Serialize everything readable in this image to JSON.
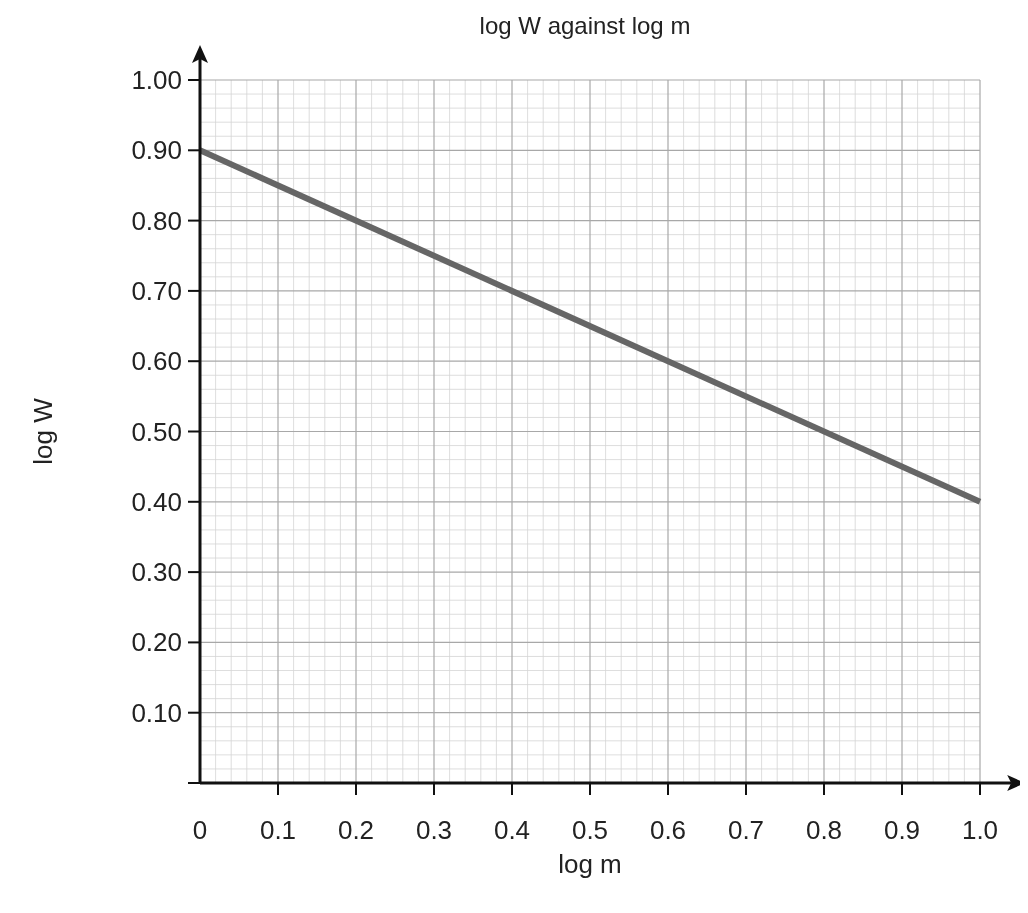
{
  "chart_data": {
    "type": "line",
    "title": "log W against log m",
    "xlabel": "log m",
    "ylabel": "log W",
    "x": [
      0,
      1.0
    ],
    "series": [
      {
        "color": "#666666",
        "values": [
          0.9,
          0.4
        ]
      }
    ],
    "xlim": [
      0,
      1.04
    ],
    "ylim": [
      0,
      1.03
    ],
    "xticks": [
      {
        "value": 0,
        "label": "0"
      },
      0.1,
      0.2,
      0.3,
      0.4,
      0.5,
      0.6,
      0.7,
      0.8,
      0.9,
      {
        "value": 1,
        "label": "1.0"
      }
    ],
    "yticks": [
      {
        "value": 0,
        "label": null
      },
      {
        "value": 0.1,
        "label": "0.10"
      },
      {
        "value": 0.2,
        "label": "0.20"
      },
      {
        "value": 0.3,
        "label": "0.30"
      },
      {
        "value": 0.4,
        "label": "0.40"
      },
      {
        "value": 0.5,
        "label": "0.50"
      },
      {
        "value": 0.6,
        "label": "0.60"
      },
      {
        "value": 0.7,
        "label": "0.70"
      },
      {
        "value": 0.8,
        "label": "0.80"
      },
      {
        "value": 0.9,
        "label": "0.90"
      },
      {
        "value": 1,
        "label": "1.00"
      }
    ],
    "grid": true,
    "marker": "none",
    "line_style": "solid"
  }
}
